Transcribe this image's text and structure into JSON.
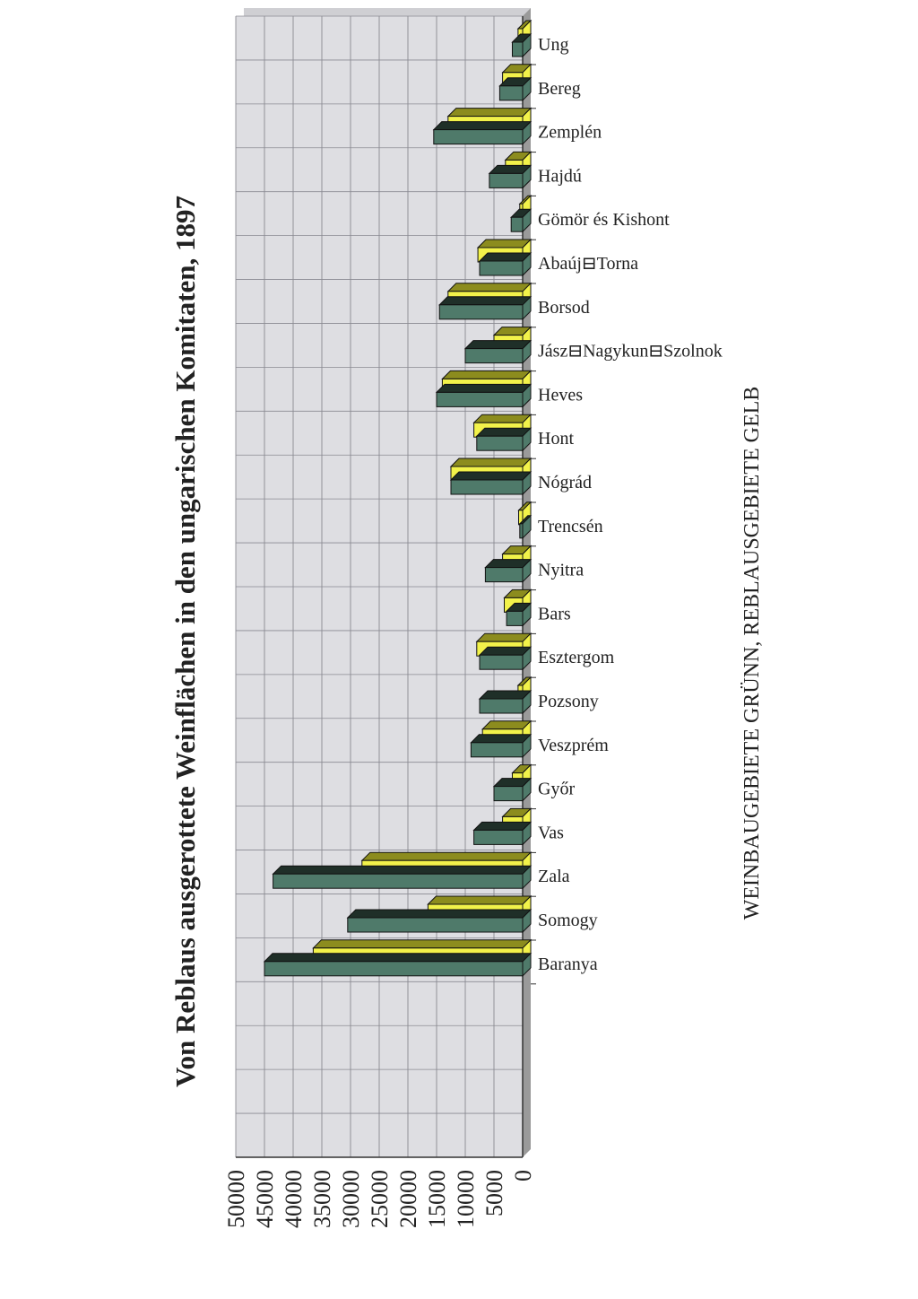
{
  "chart_data": {
    "type": "bar",
    "title": "Von Reblaus ausgerottete Weinflächen in den ungarischen Komitaten, 1897",
    "subtitle": "WEINBAUGEBIETE GRÜNN, REBLAUSGEBIETE GELB",
    "xlabel": "",
    "ylabel": "",
    "ylim": [
      0,
      50000
    ],
    "ticks": [
      "50000",
      "45000",
      "40000",
      "35000",
      "30000",
      "25000",
      "20000",
      "15000",
      "10000",
      "5000",
      "0"
    ],
    "orientation": "rotated-horizontal",
    "grid": true,
    "legend": "none",
    "categories": [
      "Ung",
      "Bereg",
      "Zemplén",
      "Hajdú",
      "Gömör és Kishont",
      "Abaúj⊟Torna",
      "Borsod",
      "Jász⊟Nagykun⊟Szolnok",
      "Heves",
      "Hont",
      "Nógrád",
      "Trencsén",
      "Nyitra",
      "Bars",
      "Esztergom",
      "Pozsony",
      "Veszprém",
      "Győr",
      "Vas",
      "Zala",
      "Somogy",
      "Baranya"
    ],
    "series": [
      {
        "values": [
          1800,
          4000,
          15500,
          5800,
          2000,
          7500,
          14500,
          10000,
          15000,
          8000,
          12500,
          500,
          6500,
          2800,
          7500,
          7500,
          9000,
          5000,
          8500,
          43500,
          30500,
          45000
        ]
      },
      {
        "values": [
          800,
          3500,
          13000,
          3000,
          500,
          7800,
          13000,
          5000,
          14000,
          8500,
          12500,
          700,
          3500,
          3200,
          8000,
          800,
          7000,
          1800,
          3500,
          28000,
          16500,
          36500
        ]
      }
    ],
    "colors": {
      "weinbau": "#4f7a6a",
      "reblaus": "#f2f24a"
    }
  }
}
